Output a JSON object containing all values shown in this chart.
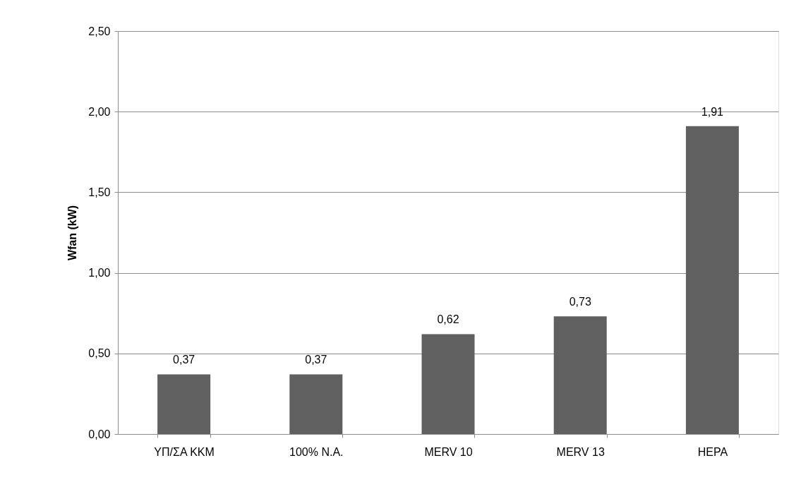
{
  "chart_data": {
    "type": "bar",
    "categories": [
      "ΥΠ/ΣΑ ΚΚΜ",
      "100% Ν.Α.",
      "MERV 10",
      "MERV 13",
      "HEPA"
    ],
    "values": [
      0.37,
      0.37,
      0.62,
      0.73,
      1.91
    ],
    "value_labels": [
      "0,37",
      "0,37",
      "0,62",
      "0,73",
      "1,91"
    ],
    "color": "#606060",
    "ylabel": "Wfan (kW)",
    "ylim": [
      0,
      2.5
    ],
    "yticks": [
      {
        "value": 0,
        "label": "0,00"
      },
      {
        "value": 0.5,
        "label": "0,50"
      },
      {
        "value": 1.0,
        "label": "1,00"
      },
      {
        "value": 1.5,
        "label": "1,50"
      },
      {
        "value": 2.0,
        "label": "2,00"
      },
      {
        "value": 2.5,
        "label": "2,50"
      }
    ],
    "grid": "y"
  }
}
